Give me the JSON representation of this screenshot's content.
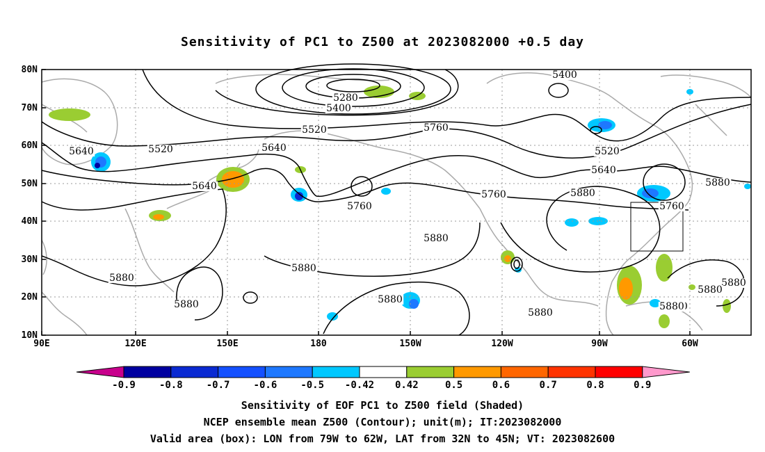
{
  "title": "Sensitivity of PC1 to Z500 at 2023082000 +0.5 day",
  "map": {
    "lat_ticks": [
      "80N",
      "70N",
      "60N",
      "50N",
      "40N",
      "30N",
      "20N",
      "10N"
    ],
    "lon_ticks": [
      "90E",
      "120E",
      "150E",
      "180",
      "150W",
      "120W",
      "90W",
      "60W"
    ],
    "lon_range": [
      "90E",
      "40W"
    ],
    "lat_range": [
      "10N",
      "80N"
    ],
    "contour_labels": [
      "5400",
      "5280",
      "5400",
      "5520",
      "5640",
      "5520",
      "5640",
      "5760",
      "5640",
      "5760",
      "5760",
      "5880",
      "5880",
      "5880",
      "5880",
      "5880",
      "5880",
      "5880",
      "5880",
      "5520",
      "5640",
      "5880",
      "5760",
      "5880",
      "5880",
      "5880",
      "5880"
    ],
    "contour_color": "#000000",
    "coastline_color": "#aaaaaa",
    "grid": "dotted",
    "valid_box": {
      "lon": [
        "79W",
        "62W"
      ],
      "lat": [
        "32N",
        "45N"
      ]
    }
  },
  "colorbar": {
    "labels": [
      "-0.9",
      "-0.8",
      "-0.7",
      "-0.6",
      "-0.5",
      "-0.42",
      "0.42",
      "0.5",
      "0.6",
      "0.7",
      "0.8",
      "0.9"
    ],
    "colors": [
      "#c8008c",
      "#0000a0",
      "#0a2ad2",
      "#1450ff",
      "#1e78ff",
      "#00c8ff",
      "#ffffff",
      "#9acd32",
      "#ff9900",
      "#ff6600",
      "#ff3300",
      "#ff0000",
      "#ff99cc"
    ]
  },
  "captions": {
    "line1": "Sensitivity of EOF PC1 to Z500 field (Shaded)",
    "line2": "NCEP ensemble mean Z500 (Contour); unit(m); IT:2023082000",
    "line3": "Valid area (box): LON from 79W to 62W, LAT from 32N to 45N; VT: 2023082600"
  }
}
